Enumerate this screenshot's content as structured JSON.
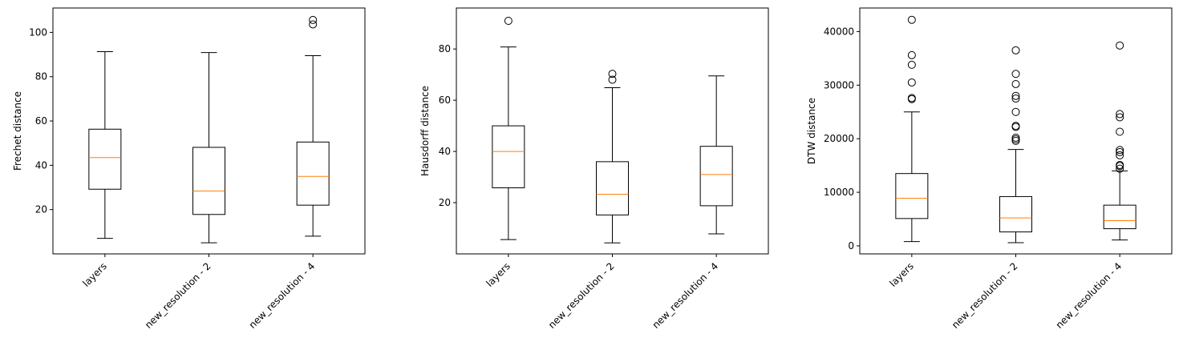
{
  "chart_data": [
    {
      "type": "boxplot",
      "ylabel": "Frechet distance",
      "categories": [
        "layers",
        "new_resolution - 2",
        "new_resolution - 4"
      ],
      "ylim": [
        0,
        111
      ],
      "yticks": [
        20,
        40,
        60,
        80,
        100
      ],
      "boxes": [
        {
          "whislo": 7,
          "q1": 29.2,
          "med": 43.5,
          "q3": 56.3,
          "whishi": 91.3,
          "fliers": []
        },
        {
          "whislo": 5,
          "q1": 17.8,
          "med": 28.4,
          "q3": 48.1,
          "whishi": 90.9,
          "fliers": []
        },
        {
          "whislo": 8,
          "q1": 22,
          "med": 35,
          "q3": 50.5,
          "whishi": 89.5,
          "fliers": [
            103.6,
            105.6
          ]
        }
      ]
    },
    {
      "type": "boxplot",
      "ylabel": "Hausdorff distance",
      "categories": [
        "layers",
        "new_resolution - 2",
        "new_resolution - 4"
      ],
      "ylim": [
        0,
        96
      ],
      "yticks": [
        20,
        40,
        60,
        80
      ],
      "boxes": [
        {
          "whislo": 5.6,
          "q1": 25.8,
          "med": 40,
          "q3": 50,
          "whishi": 80.8,
          "fliers": [
            91
          ]
        },
        {
          "whislo": 4.3,
          "q1": 15.2,
          "med": 23.3,
          "q3": 36,
          "whishi": 64.9,
          "fliers": [
            68,
            70.3
          ]
        },
        {
          "whislo": 7.8,
          "q1": 18.8,
          "med": 31,
          "q3": 42,
          "whishi": 69.5,
          "fliers": []
        }
      ]
    },
    {
      "type": "boxplot",
      "ylabel": "DTW distance",
      "categories": [
        "layers",
        "new_resolution - 2",
        "new_resolution - 4"
      ],
      "ylim": [
        -1500,
        44400
      ],
      "yticks": [
        0,
        10000,
        20000,
        30000,
        40000
      ],
      "boxes": [
        {
          "whislo": 800,
          "q1": 5100,
          "med": 8900,
          "q3": 13500,
          "whishi": 25000,
          "fliers": [
            27400,
            27600,
            30500,
            33800,
            35600,
            42200
          ]
        },
        {
          "whislo": 600,
          "q1": 2600,
          "med": 5200,
          "q3": 9200,
          "whishi": 18000,
          "fliers": [
            19600,
            19900,
            20200,
            22200,
            22400,
            25000,
            27500,
            28000,
            30200,
            32100,
            36500
          ]
        },
        {
          "whislo": 1100,
          "q1": 3200,
          "med": 4700,
          "q3": 7600,
          "whishi": 14000,
          "fliers": [
            14400,
            14900,
            15100,
            16900,
            17500,
            17900,
            21300,
            24000,
            24600,
            37400
          ]
        }
      ]
    }
  ]
}
